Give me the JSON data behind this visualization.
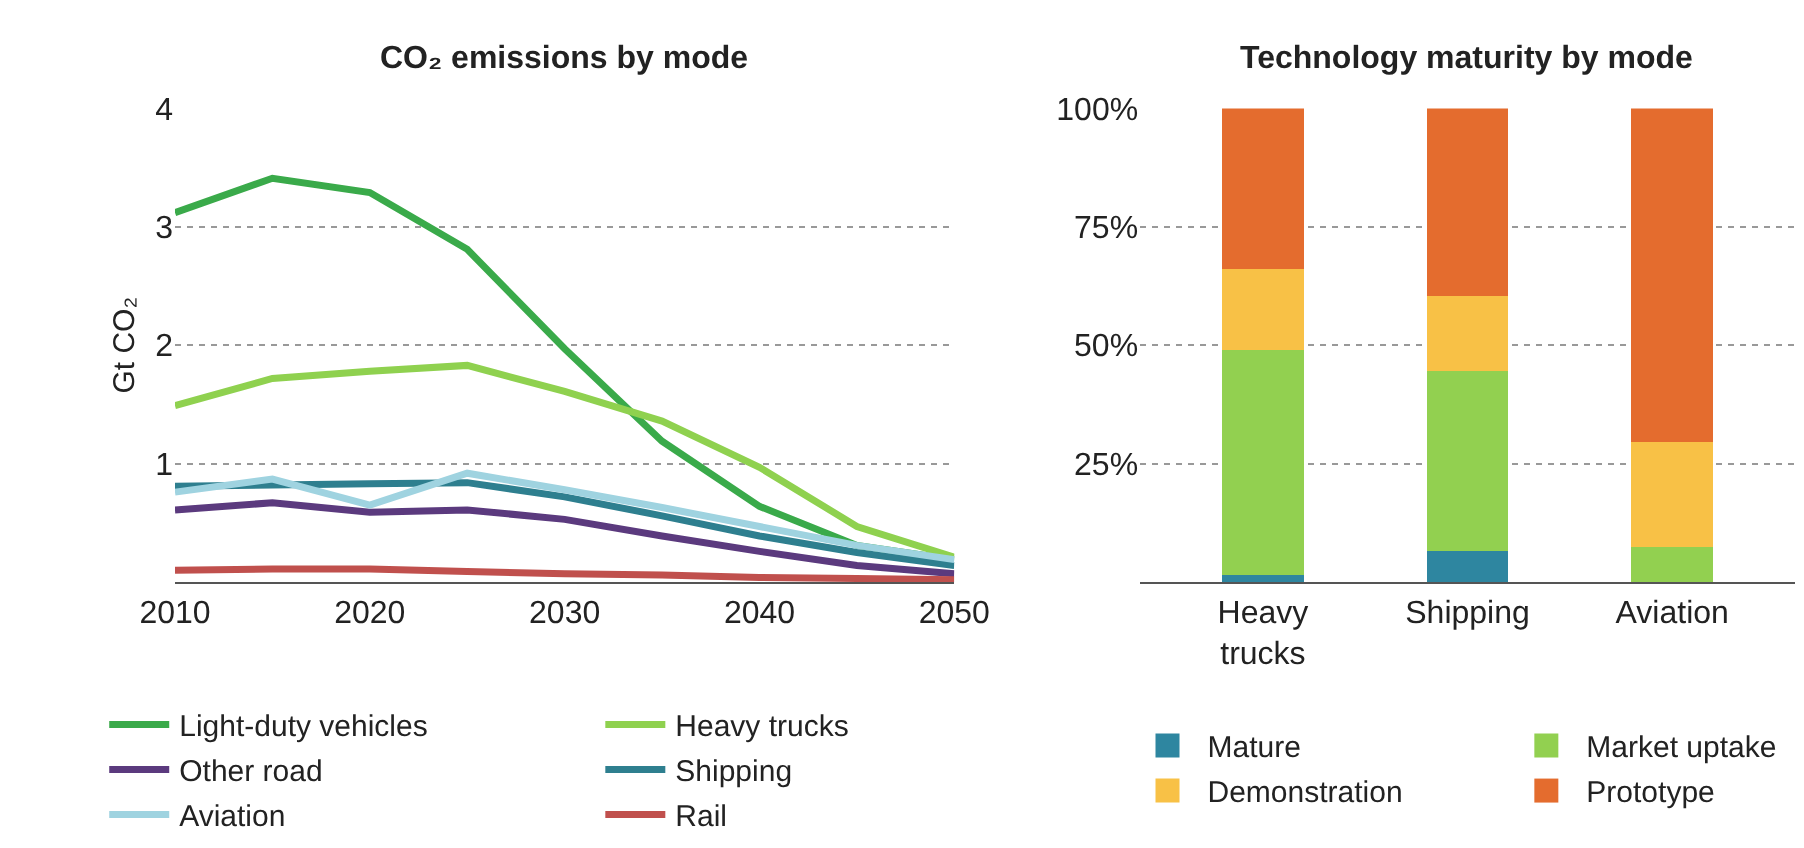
{
  "chart_data": [
    {
      "type": "line",
      "title": "CO₂ emissions by mode",
      "ylabel": "Gt CO₂",
      "x": [
        2010,
        2015,
        2020,
        2025,
        2030,
        2035,
        2040,
        2045,
        2050
      ],
      "xlim": [
        2010,
        2050
      ],
      "xticks": [
        2010,
        2020,
        2030,
        2040,
        2050
      ],
      "ylim": [
        0,
        4
      ],
      "yticks": [
        1,
        2,
        3,
        4
      ],
      "grid": "y",
      "legend": "bottom",
      "series": [
        {
          "name": "Light-duty vehicles",
          "color": "#3aaa4a",
          "values": [
            3.12,
            3.41,
            3.29,
            2.81,
            1.97,
            1.19,
            0.64,
            0.31,
            0.19
          ]
        },
        {
          "name": "Heavy trucks",
          "color": "#8fd14f",
          "values": [
            1.49,
            1.72,
            1.78,
            1.83,
            1.61,
            1.36,
            0.97,
            0.47,
            0.21
          ]
        },
        {
          "name": "Other road",
          "color": "#5b3a7e",
          "values": [
            0.61,
            0.67,
            0.59,
            0.61,
            0.53,
            0.39,
            0.26,
            0.14,
            0.07
          ]
        },
        {
          "name": "Shipping",
          "color": "#2e7f8f",
          "values": [
            0.81,
            0.82,
            0.83,
            0.84,
            0.72,
            0.56,
            0.39,
            0.25,
            0.14
          ]
        },
        {
          "name": "Aviation",
          "color": "#9fd3e0",
          "values": [
            0.76,
            0.87,
            0.65,
            0.92,
            0.78,
            0.63,
            0.47,
            0.31,
            0.19
          ]
        },
        {
          "name": "Rail",
          "color": "#c0504d",
          "values": [
            0.1,
            0.11,
            0.11,
            0.09,
            0.07,
            0.06,
            0.04,
            0.03,
            0.02
          ]
        }
      ]
    },
    {
      "type": "bar",
      "stacked": true,
      "title": "Technology maturity by mode",
      "categories": [
        "Heavy trucks",
        "Shipping",
        "Aviation"
      ],
      "ylim": [
        0,
        100
      ],
      "yticks": [
        {
          "value": 25,
          "label": "25%"
        },
        {
          "value": 50,
          "label": "50%"
        },
        {
          "value": 75,
          "label": "75%"
        },
        {
          "value": 100,
          "label": "100%"
        }
      ],
      "grid": "y",
      "legend": "bottom",
      "series": [
        {
          "name": "Mature",
          "color": "#2e86a0",
          "values": [
            1.5,
            6.5,
            0
          ]
        },
        {
          "name": "Market uptake",
          "color": "#92d050",
          "values": [
            47.5,
            38,
            7.5
          ]
        },
        {
          "name": "Demonstration",
          "color": "#f8c146",
          "values": [
            17,
            16,
            22
          ]
        },
        {
          "name": "Prototype",
          "color": "#e46c2e",
          "values": [
            34,
            39.5,
            70.5
          ]
        }
      ]
    }
  ]
}
